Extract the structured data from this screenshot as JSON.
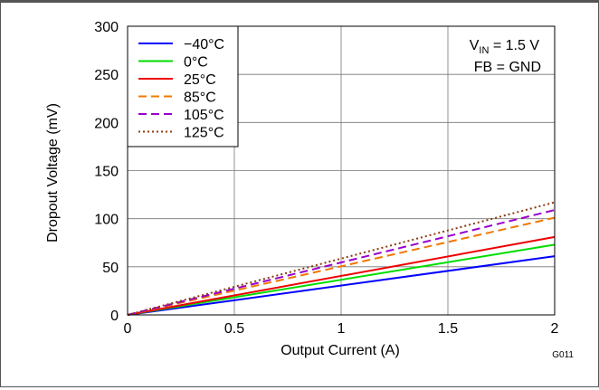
{
  "chart_data": {
    "type": "line",
    "xlabel": "Output Current (A)",
    "ylabel": "Dropout Voltage (mV)",
    "xlim": [
      0,
      2
    ],
    "ylim": [
      0,
      300
    ],
    "xticks": [
      "0",
      "0.5",
      "1",
      "1.5",
      "2"
    ],
    "yticks": [
      "0",
      "50",
      "100",
      "150",
      "200",
      "250",
      "300"
    ],
    "grid": true,
    "legend_position": "top-left",
    "annotation": {
      "vin_prefix": "V",
      "vin_sub": "IN",
      "vin_suffix": " = 1.5 V",
      "fb": "FB = GND"
    },
    "figure_id": "G011",
    "series": [
      {
        "name": "−40°C",
        "color": "#0000ff",
        "dash": "solid",
        "x": [
          0,
          2
        ],
        "y": [
          0,
          61
        ]
      },
      {
        "name": "0°C",
        "color": "#00dd00",
        "dash": "solid",
        "x": [
          0,
          2
        ],
        "y": [
          0,
          73
        ]
      },
      {
        "name": "25°C",
        "color": "#ee0000",
        "dash": "solid",
        "x": [
          0,
          2
        ],
        "y": [
          0,
          81
        ]
      },
      {
        "name": "85°C",
        "color": "#f07800",
        "dash": "dashed",
        "x": [
          0,
          2
        ],
        "y": [
          0,
          101
        ]
      },
      {
        "name": "105°C",
        "color": "#9900cc",
        "dash": "dashed",
        "x": [
          0,
          2
        ],
        "y": [
          0,
          109
        ]
      },
      {
        "name": "125°C",
        "color": "#8b3a0e",
        "dash": "dotted",
        "x": [
          0,
          2
        ],
        "y": [
          0,
          117
        ]
      }
    ]
  }
}
